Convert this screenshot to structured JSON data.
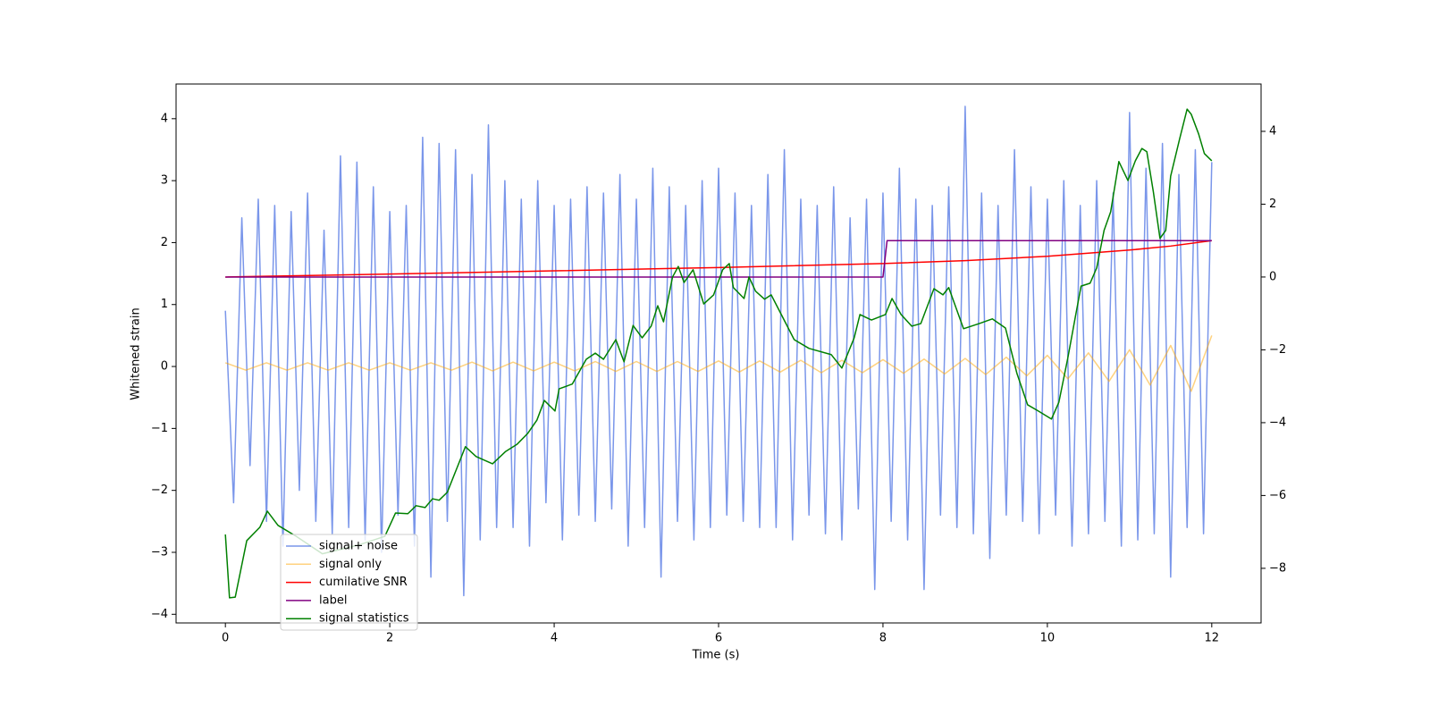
{
  "chart_data": {
    "type": "line",
    "xlabel": "Time (s)",
    "ylabel": "Whitened strain",
    "xlim": [
      -0.6,
      12.6
    ],
    "xticks": [
      0,
      2,
      4,
      6,
      8,
      10,
      12
    ],
    "ylim": [
      -4.14,
      4.56
    ],
    "yticks": [
      {
        "value": -4,
        "label": "−4"
      },
      {
        "value": -3,
        "label": "−3"
      },
      {
        "value": -2,
        "label": "−2"
      },
      {
        "value": -1,
        "label": "−1"
      },
      0,
      1,
      2,
      3,
      4
    ],
    "y2lim": [
      -9.5,
      5.3
    ],
    "y2ticks": [
      {
        "value": -8,
        "label": "−8"
      },
      {
        "value": -6,
        "label": "−6"
      },
      {
        "value": -4,
        "label": "−4"
      },
      {
        "value": -2,
        "label": "−2"
      },
      0,
      2,
      4
    ],
    "series": [
      {
        "name": "signal+ noise",
        "color": "#4169e1",
        "alpha": 0.7,
        "x": [
          0,
          0.1,
          0.2,
          0.3,
          0.4,
          0.5,
          0.6,
          0.7,
          0.8,
          0.9,
          1,
          1.1,
          1.2,
          1.3,
          1.4,
          1.5,
          1.6,
          1.7,
          1.8,
          1.9,
          2,
          2.1,
          2.2,
          2.3,
          2.4,
          2.5,
          2.6,
          2.7,
          2.8,
          2.9,
          3,
          3.1,
          3.2,
          3.3,
          3.4,
          3.5,
          3.6,
          3.7,
          3.8,
          3.9,
          4,
          4.1,
          4.2,
          4.3,
          4.4,
          4.5,
          4.6,
          4.7,
          4.8,
          4.9,
          5,
          5.1,
          5.2,
          5.3,
          5.4,
          5.5,
          5.6,
          5.7,
          5.8,
          5.9,
          6,
          6.1,
          6.2,
          6.3,
          6.4,
          6.5,
          6.6,
          6.7,
          6.8,
          6.9,
          7,
          7.1,
          7.2,
          7.3,
          7.4,
          7.5,
          7.6,
          7.7,
          7.8,
          7.9,
          8,
          8.1,
          8.2,
          8.3,
          8.4,
          8.5,
          8.6,
          8.7,
          8.8,
          8.9,
          9,
          9.1,
          9.2,
          9.3,
          9.4,
          9.5,
          9.6,
          9.7,
          9.8,
          9.9,
          10,
          10.1,
          10.2,
          10.3,
          10.4,
          10.5,
          10.6,
          10.7,
          10.8,
          10.9,
          11,
          11.1,
          11.2,
          11.3,
          11.4,
          11.5,
          11.6,
          11.7,
          11.8,
          11.9,
          12
        ],
        "values": [
          0.9,
          -2.2,
          2.4,
          -1.6,
          2.7,
          -2.5,
          2.6,
          -2.9,
          2.5,
          -2.0,
          2.8,
          -2.5,
          2.2,
          -2.7,
          3.4,
          -2.6,
          3.3,
          -2.8,
          2.9,
          -3.0,
          2.5,
          -2.4,
          2.6,
          -2.9,
          3.7,
          -3.4,
          3.6,
          -2.5,
          3.5,
          -3.7,
          3.1,
          -2.8,
          3.9,
          -2.6,
          3.0,
          -2.6,
          2.7,
          -2.9,
          3.0,
          -2.2,
          2.6,
          -2.8,
          2.7,
          -2.4,
          2.9,
          -2.5,
          2.8,
          -2.3,
          3.1,
          -2.9,
          2.7,
          -2.6,
          3.2,
          -3.4,
          2.9,
          -2.5,
          2.6,
          -2.8,
          3.0,
          -2.6,
          3.2,
          -2.4,
          2.8,
          -2.5,
          2.6,
          -2.6,
          3.1,
          -2.6,
          3.5,
          -2.8,
          2.7,
          -2.4,
          2.6,
          -2.7,
          2.9,
          -2.8,
          2.4,
          -2.3,
          2.7,
          -3.6,
          2.8,
          -2.5,
          3.2,
          -2.8,
          2.7,
          -3.6,
          2.6,
          -2.4,
          2.9,
          -2.6,
          4.2,
          -2.7,
          2.8,
          -3.1,
          2.6,
          -2.4,
          3.5,
          -2.5,
          2.9,
          -2.7,
          2.7,
          -2.4,
          3.0,
          -2.9,
          2.6,
          -2.7,
          3.0,
          -2.5,
          2.8,
          -2.9,
          4.1,
          -2.8,
          3.2,
          -2.7,
          3.6,
          -3.4,
          3.1,
          -2.6,
          3.5,
          -2.7,
          3.3
        ]
      },
      {
        "name": "signal only",
        "color": "#ffa500",
        "alpha": 0.5,
        "x": [
          0,
          0.25,
          0.5,
          0.75,
          1,
          1.25,
          1.5,
          1.75,
          2,
          2.25,
          2.5,
          2.75,
          3,
          3.25,
          3.5,
          3.75,
          4,
          4.25,
          4.5,
          4.75,
          5,
          5.25,
          5.5,
          5.75,
          6,
          6.25,
          6.5,
          6.75,
          7,
          7.25,
          7.5,
          7.75,
          8,
          8.25,
          8.5,
          8.75,
          9,
          9.25,
          9.5,
          9.75,
          10,
          10.25,
          10.5,
          10.75,
          11,
          11.25,
          11.5,
          11.75,
          12
        ],
        "values": [
          0.06,
          -0.06,
          0.06,
          -0.06,
          0.06,
          -0.06,
          0.06,
          -0.06,
          0.06,
          -0.06,
          0.06,
          -0.06,
          0.07,
          -0.07,
          0.07,
          -0.07,
          0.07,
          -0.07,
          0.08,
          -0.08,
          0.08,
          -0.08,
          0.08,
          -0.08,
          0.09,
          -0.09,
          0.09,
          -0.09,
          0.1,
          -0.1,
          0.1,
          -0.1,
          0.11,
          -0.11,
          0.12,
          -0.12,
          0.13,
          -0.13,
          0.15,
          -0.15,
          0.18,
          -0.2,
          0.22,
          -0.24,
          0.27,
          -0.3,
          0.34,
          -0.4,
          0.5
        ]
      },
      {
        "name": "cumilative SNR",
        "color": "#ff0000",
        "axis": "y2",
        "x": [
          0,
          2,
          4,
          6,
          8,
          9,
          10,
          11,
          11.5,
          12
        ],
        "values": [
          0,
          0.08,
          0.17,
          0.26,
          0.37,
          0.45,
          0.57,
          0.74,
          0.85,
          1.0
        ]
      },
      {
        "name": "label",
        "color": "#800080",
        "axis": "y2",
        "x": [
          0,
          8,
          8.05,
          12
        ],
        "values": [
          0,
          0,
          1,
          1
        ]
      },
      {
        "name": "signal statistics",
        "color": "#008000",
        "axis": "y2",
        "x": [
          0,
          0.05,
          0.12,
          0.26,
          0.42,
          0.51,
          0.64,
          0.86,
          1.18,
          1.62,
          1.94,
          2.07,
          2.22,
          2.32,
          2.43,
          2.52,
          2.6,
          2.7,
          2.92,
          3.05,
          3.25,
          3.41,
          3.55,
          3.68,
          3.79,
          3.88,
          4.01,
          4.06,
          4.22,
          4.39,
          4.5,
          4.6,
          4.75,
          4.85,
          4.96,
          5.07,
          5.18,
          5.26,
          5.33,
          5.44,
          5.51,
          5.58,
          5.69,
          5.82,
          5.94,
          6.05,
          6.13,
          6.18,
          6.31,
          6.37,
          6.45,
          6.56,
          6.64,
          6.92,
          7.1,
          7.37,
          7.5,
          7.65,
          7.72,
          7.86,
          8.03,
          8.11,
          8.22,
          8.35,
          8.46,
          8.62,
          8.73,
          8.8,
          8.98,
          9.17,
          9.33,
          9.49,
          9.63,
          9.76,
          9.89,
          10.05,
          10.14,
          10.25,
          10.34,
          10.41,
          10.52,
          10.6,
          10.69,
          10.77,
          10.87,
          10.98,
          11.07,
          11.15,
          11.21,
          11.29,
          11.37,
          11.44,
          11.5,
          11.61,
          11.7,
          11.75,
          11.84,
          11.91,
          12
        ],
        "values": [
          -7.07,
          -8.81,
          -8.79,
          -7.24,
          -6.87,
          -6.43,
          -6.82,
          -7.12,
          -7.6,
          -7.36,
          -7.12,
          -6.48,
          -6.5,
          -6.28,
          -6.33,
          -6.09,
          -6.13,
          -5.91,
          -4.66,
          -4.93,
          -5.13,
          -4.79,
          -4.59,
          -4.29,
          -3.93,
          -3.39,
          -3.68,
          -3.07,
          -2.94,
          -2.26,
          -2.09,
          -2.26,
          -1.72,
          -2.33,
          -1.33,
          -1.67,
          -1.35,
          -0.79,
          -1.23,
          0,
          0.29,
          -0.15,
          0.2,
          -0.74,
          -0.49,
          0.2,
          0.37,
          -0.29,
          -0.59,
          0,
          -0.39,
          -0.61,
          -0.49,
          -1.72,
          -1.96,
          -2.13,
          -2.5,
          -1.67,
          -1.03,
          -1.18,
          -1.03,
          -0.59,
          -1.03,
          -1.35,
          -1.28,
          -0.32,
          -0.49,
          -0.29,
          -1.42,
          -1.28,
          -1.15,
          -1.4,
          -2.65,
          -3.51,
          -3.68,
          -3.9,
          -3.44,
          -2.21,
          -1.1,
          -0.25,
          -0.17,
          0.25,
          1.28,
          1.79,
          3.17,
          2.65,
          3.19,
          3.53,
          3.44,
          2.33,
          1.06,
          1.28,
          2.77,
          3.8,
          4.61,
          4.47,
          3.93,
          3.39,
          3.19
        ]
      }
    ]
  }
}
